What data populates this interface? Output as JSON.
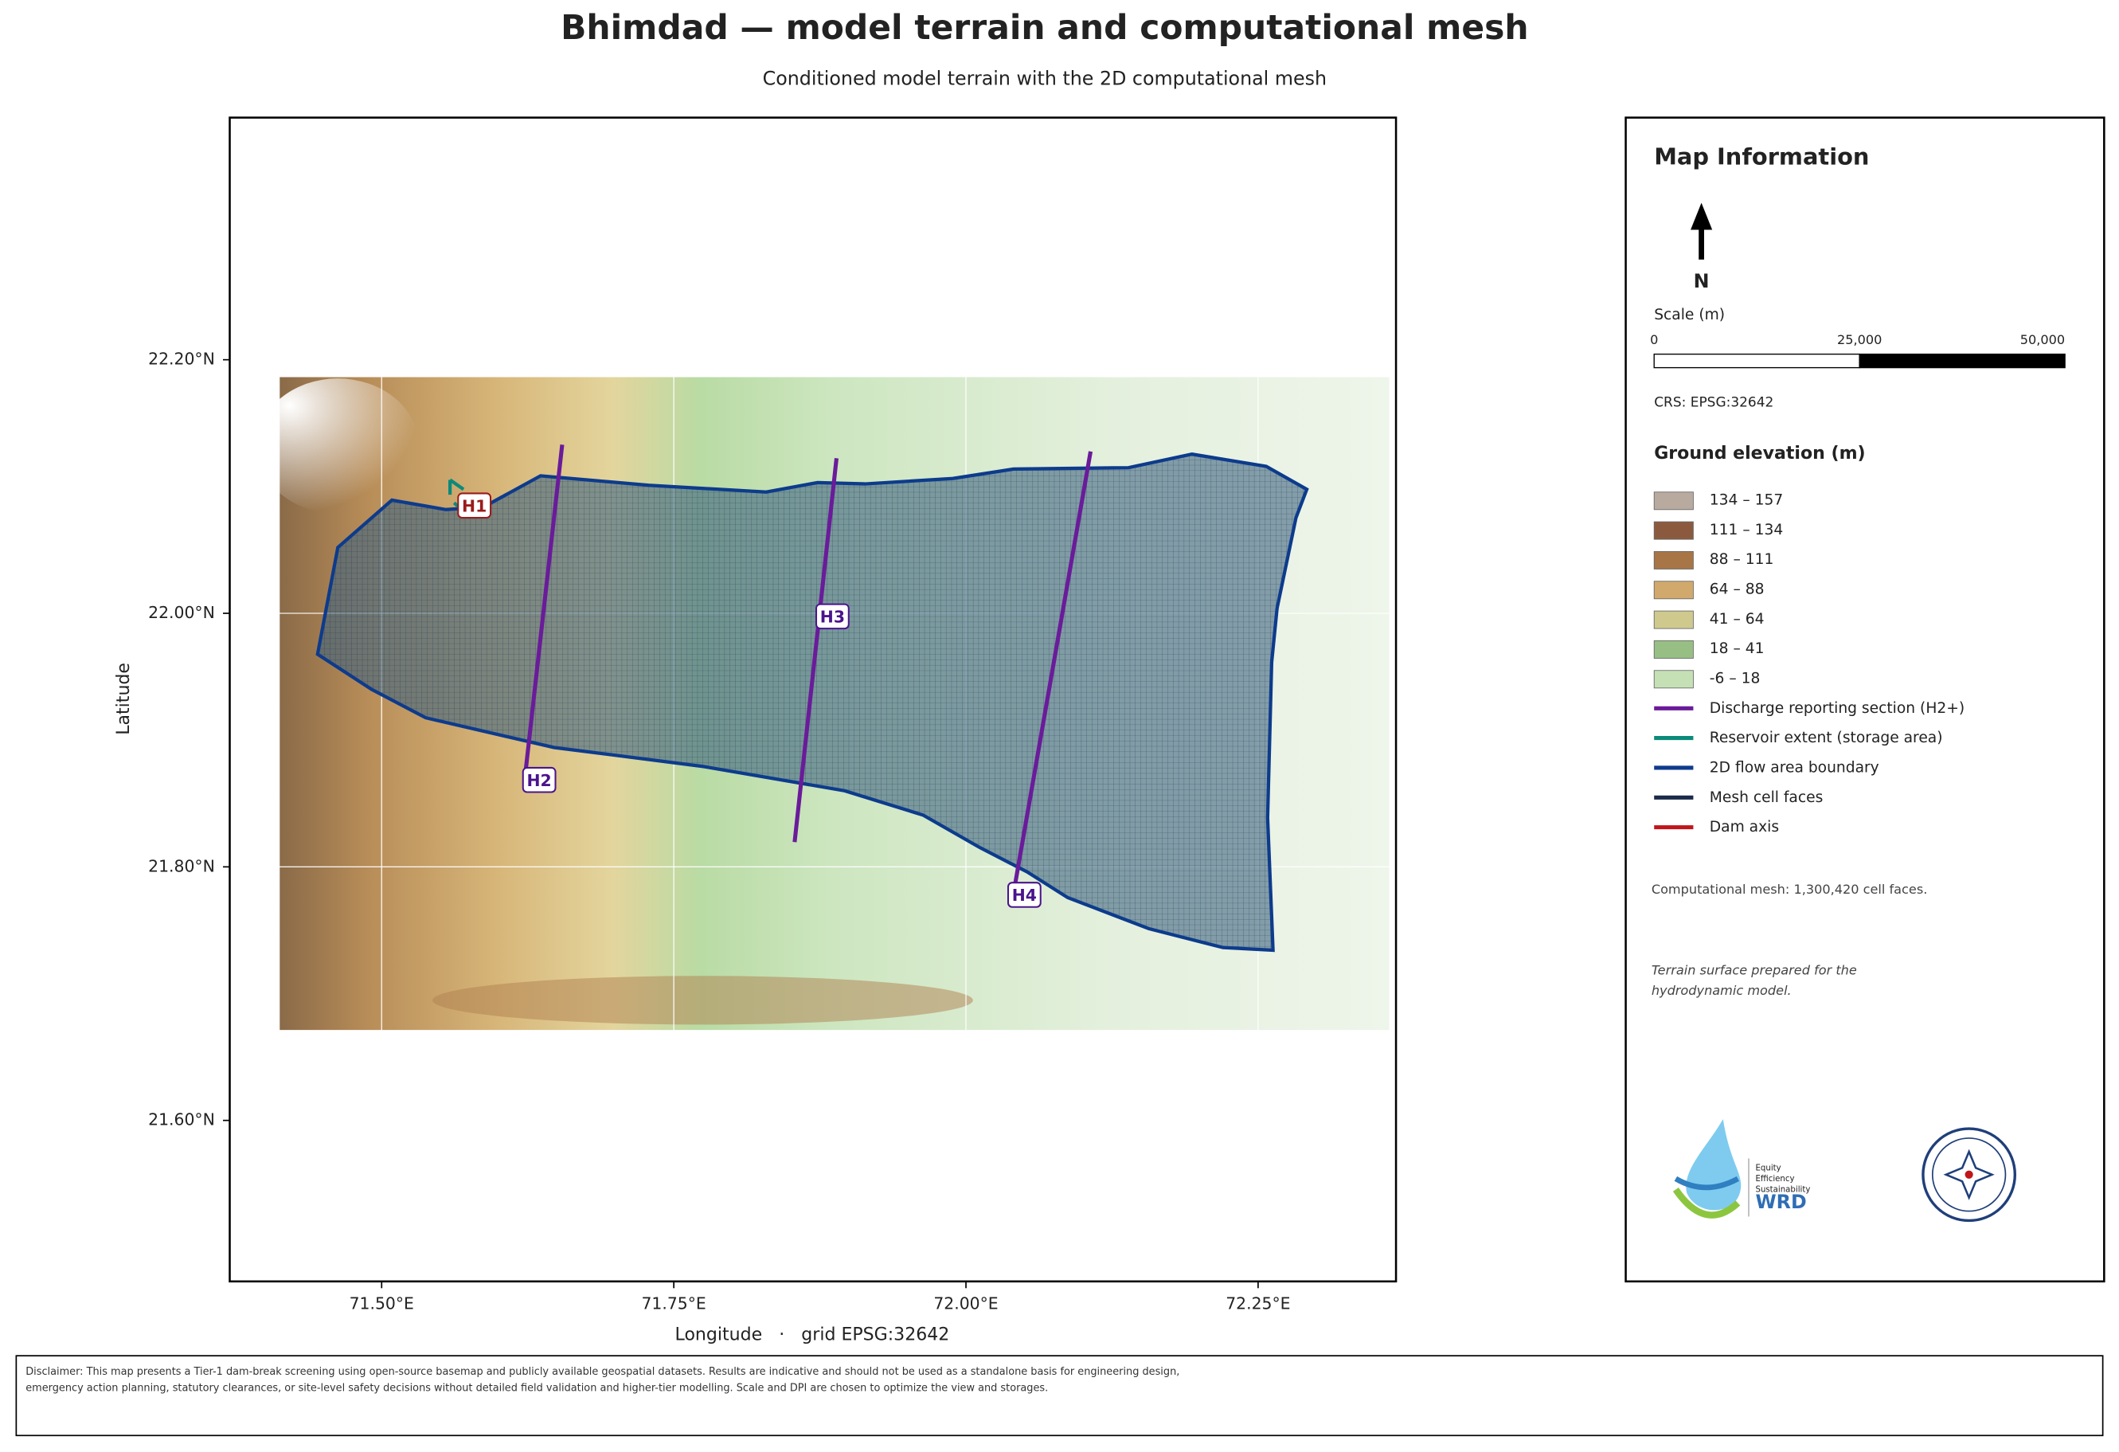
{
  "header": {
    "title": "Bhimdad — model terrain and computational mesh",
    "subtitle": "Conditioned model terrain with the 2D computational mesh"
  },
  "map": {
    "xlabel": "Longitude   ·   grid EPSG:32642",
    "ylabel": "Latitude",
    "xlim": [
      71.37,
      72.368
    ],
    "ylim": [
      21.473,
      22.391
    ],
    "xticks": [
      {
        "value": 71.5,
        "label": "71.50°E"
      },
      {
        "value": 71.75,
        "label": "71.75°E"
      },
      {
        "value": 72.0,
        "label": "72.00°E"
      },
      {
        "value": 72.25,
        "label": "72.25°E"
      }
    ],
    "yticks": [
      {
        "value": 21.6,
        "label": "21.60°N"
      },
      {
        "value": 21.8,
        "label": "21.80°N"
      },
      {
        "value": 22.0,
        "label": "22.00°N"
      },
      {
        "value": 22.2,
        "label": "22.20°N"
      }
    ],
    "grid": true,
    "sections": [
      "H1",
      "H2",
      "H3",
      "H4"
    ]
  },
  "info": {
    "title": "Map Information",
    "north": "N",
    "scale_title": "Scale (m)",
    "scale_ticks": [
      {
        "value": 0,
        "label": "0"
      },
      {
        "value": 25000,
        "label": "25,000"
      },
      {
        "value": 50000,
        "label": "50,000"
      }
    ],
    "crs": "CRS: EPSG:32642",
    "legend_title": "Ground elevation (m)",
    "elevation_classes": [
      {
        "label": "134 – 157",
        "color": "#b9aa9f"
      },
      {
        "label": "111 – 134",
        "color": "#8b5a3e"
      },
      {
        "label": "88 – 111",
        "color": "#a87547"
      },
      {
        "label": "64 – 88",
        "color": "#d1a96c"
      },
      {
        "label": "41 – 64",
        "color": "#cfc98e"
      },
      {
        "label": "18 – 41",
        "color": "#97bf84"
      },
      {
        "label": "-6 – 18",
        "color": "#c5e0b5"
      }
    ],
    "layers": [
      {
        "label": "Discharge reporting section (H2+)",
        "color": "#6a1b9a"
      },
      {
        "label": "Reservoir extent (storage area)",
        "color": "#0b8a7a"
      },
      {
        "label": "2D flow area boundary",
        "color": "#0d3b8c"
      },
      {
        "label": "Mesh cell faces",
        "color": "#1a2a4a"
      },
      {
        "label": "Dam axis",
        "color": "#c0151b"
      }
    ],
    "note": "Computational mesh: 1,300,420 cell faces.",
    "note2": "Terrain surface prepared for the hydrodynamic model.",
    "logo_lines": [
      "Equity",
      "Efficiency",
      "Sustainability",
      "WRD"
    ]
  },
  "disclaimer": "Disclaimer: This map presents a Tier-1 dam-break screening using open-source basemap and publicly available geospatial datasets. Results are indicative and should not be used as a standalone basis for engineering design, emergency action planning, statutory clearances, or site-level safety decisions without detailed field validation and higher-tier modelling. Scale and DPI are chosen to optimize the view and storages."
}
